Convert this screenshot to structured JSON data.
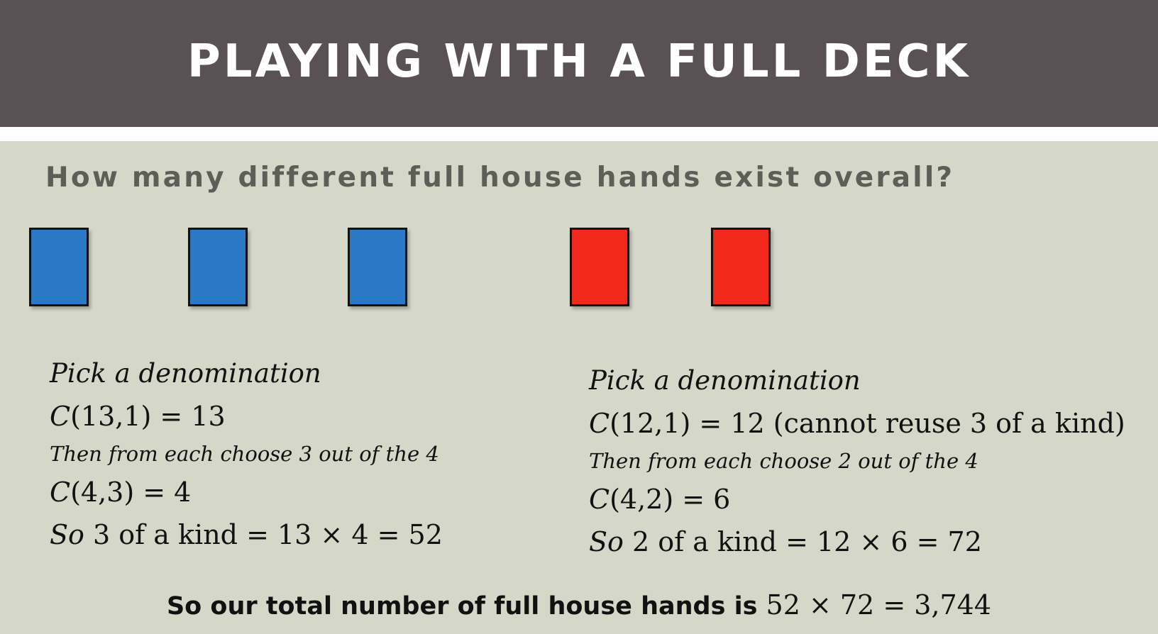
{
  "slide": {
    "title": "PLAYING WITH A FULL DECK",
    "question": "How many different full house hands exist overall?"
  },
  "cards": {
    "three_of_a_kind_color": "#2a79c6",
    "pair_color": "#f2281d",
    "three_of_a_kind_count": 3,
    "pair_count": 2
  },
  "left_calc": {
    "heading": "Pick a denomination",
    "step1_func": "C",
    "step1_expr": "(13,1) = 13",
    "step2_text": "Then from each choose 3 out of the 4",
    "step3_func": "C",
    "step3_expr": "(4,3) = 4",
    "result_prefix": "So",
    "result_expr": "3 of a kind = 13 × 4 = 52"
  },
  "right_calc": {
    "heading": "Pick a denomination",
    "step1_func": "C",
    "step1_expr": "(12,1) = 12 (cannot reuse 3 of a kind)",
    "step2_text": "Then from each choose 2 out of the 4",
    "step3_func": "C",
    "step3_expr": "(4,2) = 6",
    "result_prefix": "So",
    "result_expr": "2 of a kind = 12 × 6 = 72"
  },
  "total": {
    "label": "So our total number of full house hands is",
    "expr": "52 × 72 = 3,744"
  }
}
